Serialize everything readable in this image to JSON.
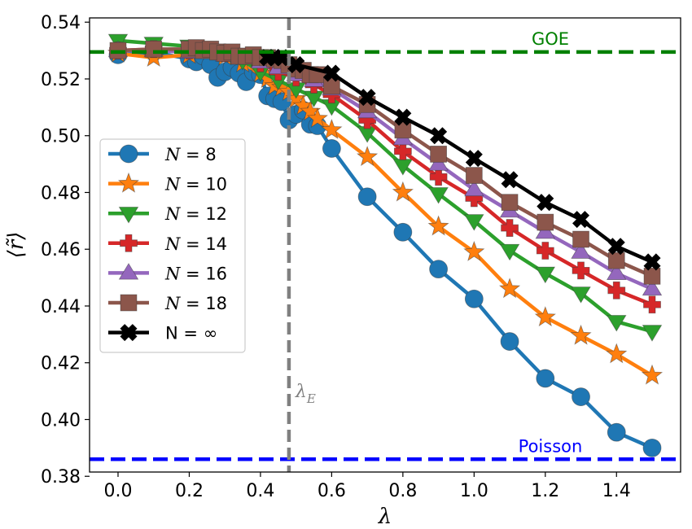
{
  "chart_data": {
    "type": "line",
    "xlabel": "λ",
    "ylabel": "⟨r̃⟩",
    "xlim": [
      -0.08,
      1.58
    ],
    "ylim": [
      0.3815,
      0.5415
    ],
    "xticks": [
      0.0,
      0.2,
      0.4,
      0.6,
      0.8,
      1.0,
      1.2,
      1.4
    ],
    "xtick_labels": [
      "0.0",
      "0.2",
      "0.4",
      "0.6",
      "0.8",
      "1.0",
      "1.2",
      "1.4"
    ],
    "yticks": [
      0.38,
      0.4,
      0.42,
      0.44,
      0.46,
      0.48,
      0.5,
      0.52,
      0.54
    ],
    "ytick_labels": [
      "0.38",
      "0.40",
      "0.42",
      "0.44",
      "0.46",
      "0.48",
      "0.50",
      "0.52",
      "0.54"
    ],
    "legend_position": "center-left",
    "reference_lines": [
      {
        "name": "GOE",
        "y": 0.5295,
        "color": "#008000",
        "label": "GOE"
      },
      {
        "name": "Poisson",
        "y": 0.386,
        "color": "#0000ff",
        "label": "Poisson"
      }
    ],
    "vertical_line": {
      "x": 0.48,
      "color": "#808080",
      "label_main": "λ",
      "label_sub": "E"
    },
    "series": [
      {
        "name": "N = 8",
        "legend_prefix": "N",
        "legend_value": " = 8",
        "italic": true,
        "color": "#1f77b4",
        "marker": "circle",
        "x": [
          0.0,
          0.1,
          0.2,
          0.22,
          0.24,
          0.26,
          0.28,
          0.3,
          0.32,
          0.34,
          0.36,
          0.38,
          0.4,
          0.42,
          0.44,
          0.46,
          0.48,
          0.5,
          0.52,
          0.54,
          0.56,
          0.6,
          0.7,
          0.8,
          0.9,
          1.0,
          1.1,
          1.2,
          1.3,
          1.4,
          1.5
        ],
        "y": [
          0.5285,
          0.5295,
          0.527,
          0.526,
          0.528,
          0.525,
          0.5205,
          0.5225,
          0.524,
          0.522,
          0.519,
          0.5225,
          0.5215,
          0.514,
          0.513,
          0.512,
          0.5055,
          0.5075,
          0.509,
          0.504,
          0.5035,
          0.4955,
          0.4785,
          0.466,
          0.453,
          0.4425,
          0.4275,
          0.4145,
          0.408,
          0.3955,
          0.39
        ]
      },
      {
        "name": "N = 10",
        "legend_prefix": "N",
        "legend_value": " = 10",
        "italic": true,
        "color": "#ff7f0e",
        "marker": "star",
        "x": [
          0.0,
          0.1,
          0.2,
          0.3,
          0.35,
          0.4,
          0.42,
          0.44,
          0.46,
          0.48,
          0.5,
          0.52,
          0.54,
          0.56,
          0.6,
          0.7,
          0.8,
          0.9,
          1.0,
          1.1,
          1.2,
          1.3,
          1.4,
          1.5
        ],
        "y": [
          0.529,
          0.5275,
          0.5285,
          0.528,
          0.5255,
          0.522,
          0.52,
          0.5175,
          0.517,
          0.5155,
          0.513,
          0.5105,
          0.5085,
          0.506,
          0.502,
          0.4925,
          0.48,
          0.468,
          0.459,
          0.446,
          0.436,
          0.4295,
          0.423,
          0.4155
        ]
      },
      {
        "name": "N = 12",
        "legend_prefix": "N",
        "legend_value": " = 12",
        "italic": true,
        "color": "#2ca02c",
        "marker": "triangle-down",
        "x": [
          0.0,
          0.1,
          0.2,
          0.25,
          0.3,
          0.35,
          0.4,
          0.45,
          0.5,
          0.55,
          0.6,
          0.7,
          0.8,
          0.9,
          1.0,
          1.1,
          1.2,
          1.3,
          1.4,
          1.5
        ],
        "y": [
          0.5335,
          0.5325,
          0.5315,
          0.531,
          0.53,
          0.5265,
          0.5225,
          0.5195,
          0.5165,
          0.5135,
          0.5105,
          0.501,
          0.4895,
          0.4795,
          0.47,
          0.4595,
          0.4515,
          0.4445,
          0.4345,
          0.431
        ]
      },
      {
        "name": "N = 14",
        "legend_prefix": "N",
        "legend_value": " = 14",
        "italic": true,
        "color": "#d62728",
        "marker": "plus",
        "x": [
          0.0,
          0.1,
          0.2,
          0.3,
          0.4,
          0.45,
          0.5,
          0.55,
          0.6,
          0.7,
          0.8,
          0.9,
          1.0,
          1.1,
          1.2,
          1.3,
          1.4,
          1.5
        ],
        "y": [
          0.53,
          0.5305,
          0.53,
          0.529,
          0.5255,
          0.5225,
          0.5205,
          0.518,
          0.5145,
          0.5055,
          0.4945,
          0.4855,
          0.478,
          0.4675,
          0.4595,
          0.4525,
          0.4455,
          0.4405
        ]
      },
      {
        "name": "N = 16",
        "legend_prefix": "N",
        "legend_value": " = 16",
        "italic": true,
        "color": "#9467bd",
        "marker": "triangle-up",
        "x": [
          0.0,
          0.1,
          0.2,
          0.3,
          0.4,
          0.45,
          0.5,
          0.55,
          0.6,
          0.7,
          0.8,
          0.9,
          1.0,
          1.1,
          1.2,
          1.3,
          1.4,
          1.5
        ],
        "y": [
          0.53,
          0.53,
          0.5295,
          0.5285,
          0.526,
          0.524,
          0.5215,
          0.5195,
          0.5165,
          0.5085,
          0.499,
          0.49,
          0.481,
          0.4735,
          0.466,
          0.459,
          0.4515,
          0.446
        ]
      },
      {
        "name": "N = 18",
        "legend_prefix": "N",
        "legend_value": " = 18",
        "italic": true,
        "color": "#8c564b",
        "marker": "square",
        "x": [
          0.0,
          0.1,
          0.2,
          0.22,
          0.24,
          0.26,
          0.28,
          0.3,
          0.32,
          0.34,
          0.36,
          0.38,
          0.4,
          0.42,
          0.44,
          0.46,
          0.48,
          0.5,
          0.52,
          0.54,
          0.56,
          0.6,
          0.7,
          0.8,
          0.9,
          1.0,
          1.1,
          1.2,
          1.3,
          1.4,
          1.5
        ],
        "y": [
          0.53,
          0.5305,
          0.5305,
          0.531,
          0.53,
          0.5305,
          0.5295,
          0.529,
          0.5295,
          0.528,
          0.528,
          0.5285,
          0.5275,
          0.5275,
          0.527,
          0.5265,
          0.525,
          0.5235,
          0.523,
          0.5215,
          0.5215,
          0.5175,
          0.511,
          0.502,
          0.4935,
          0.486,
          0.4765,
          0.4695,
          0.4635,
          0.456,
          0.4505
        ]
      },
      {
        "name": "N = ∞",
        "legend_prefix": "",
        "legend_value": "N = ∞",
        "italic": false,
        "color": "#000000",
        "marker": "x",
        "x": [
          0.42,
          0.44,
          0.46,
          0.5,
          0.6,
          0.7,
          0.8,
          0.9,
          1.0,
          1.1,
          1.2,
          1.3,
          1.4,
          1.5
        ],
        "y": [
          0.5275,
          0.5275,
          0.5275,
          0.525,
          0.522,
          0.5135,
          0.5065,
          0.5,
          0.492,
          0.4845,
          0.4765,
          0.4705,
          0.461,
          0.4555
        ]
      }
    ]
  }
}
